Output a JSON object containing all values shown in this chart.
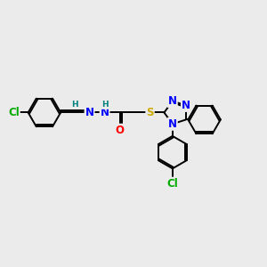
{
  "bg_color": "#ebebeb",
  "bond_color": "#000000",
  "bond_width": 1.4,
  "atom_colors": {
    "N": "#0000ff",
    "O": "#ff0000",
    "S": "#ccaa00",
    "Cl": "#00aa00",
    "C": "#000000",
    "H": "#008080"
  },
  "font_size": 8.5,
  "fig_width": 3.0,
  "fig_height": 3.0,
  "xlim": [
    0,
    10
  ],
  "ylim": [
    0,
    10
  ]
}
